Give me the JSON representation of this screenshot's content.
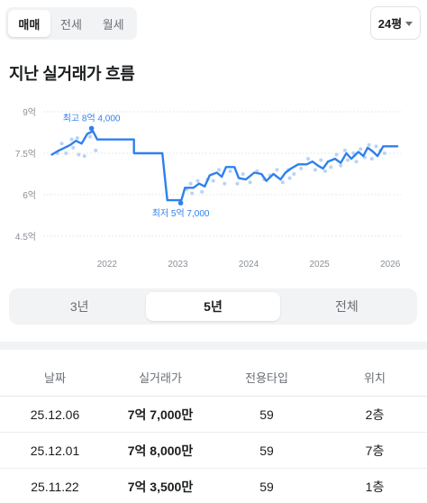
{
  "deal_tabs": [
    {
      "label": "매매",
      "active": true
    },
    {
      "label": "전세",
      "active": false
    },
    {
      "label": "월세",
      "active": false
    }
  ],
  "size_select": {
    "label": "24평"
  },
  "section_title": "지난 실거래가 흐름",
  "chart_data": {
    "type": "line",
    "title": "",
    "y_unit": "억",
    "y_ticks": [
      "9억",
      "7.5억",
      "6억",
      "4.5억"
    ],
    "y_tick_values": [
      9,
      7.5,
      6,
      4.5
    ],
    "ylim": [
      4.5,
      9
    ],
    "x_ticks": [
      "2022",
      "2023",
      "2024",
      "2025",
      "2026"
    ],
    "x_tick_values": [
      2022,
      2023,
      2024,
      2025,
      2026
    ],
    "xlim": [
      2021.2,
      2026.15
    ],
    "grid": true,
    "annotations": {
      "max": {
        "label": "최고 8억 4,000",
        "x": 2021.78,
        "y": 8.4
      },
      "min": {
        "label": "최저 5억 7,000",
        "x": 2023.04,
        "y": 5.7
      }
    },
    "series": [
      {
        "values": [
          {
            "x": 2021.22,
            "y": 7.45
          },
          {
            "x": 2021.32,
            "y": 7.6
          },
          {
            "x": 2021.4,
            "y": 7.7
          },
          {
            "x": 2021.48,
            "y": 7.8
          },
          {
            "x": 2021.56,
            "y": 7.95
          },
          {
            "x": 2021.64,
            "y": 7.85
          },
          {
            "x": 2021.72,
            "y": 8.2
          },
          {
            "x": 2021.8,
            "y": 8.3
          },
          {
            "x": 2021.86,
            "y": 8.0
          },
          {
            "x": 2022.2,
            "y": 8.0
          },
          {
            "x": 2022.38,
            "y": 8.0
          },
          {
            "x": 2022.38,
            "y": 7.5
          },
          {
            "x": 2022.78,
            "y": 7.5
          },
          {
            "x": 2022.85,
            "y": 5.8
          },
          {
            "x": 2023.05,
            "y": 5.8
          },
          {
            "x": 2023.1,
            "y": 6.25
          },
          {
            "x": 2023.22,
            "y": 6.25
          },
          {
            "x": 2023.3,
            "y": 6.4
          },
          {
            "x": 2023.38,
            "y": 6.3
          },
          {
            "x": 2023.45,
            "y": 6.7
          },
          {
            "x": 2023.55,
            "y": 6.8
          },
          {
            "x": 2023.62,
            "y": 6.65
          },
          {
            "x": 2023.68,
            "y": 7.0
          },
          {
            "x": 2023.8,
            "y": 7.0
          },
          {
            "x": 2023.86,
            "y": 6.6
          },
          {
            "x": 2023.96,
            "y": 6.55
          },
          {
            "x": 2024.08,
            "y": 6.8
          },
          {
            "x": 2024.18,
            "y": 6.75
          },
          {
            "x": 2024.25,
            "y": 6.5
          },
          {
            "x": 2024.35,
            "y": 6.75
          },
          {
            "x": 2024.45,
            "y": 6.55
          },
          {
            "x": 2024.52,
            "y": 6.8
          },
          {
            "x": 2024.6,
            "y": 6.95
          },
          {
            "x": 2024.7,
            "y": 7.1
          },
          {
            "x": 2024.82,
            "y": 7.1
          },
          {
            "x": 2024.9,
            "y": 7.2
          },
          {
            "x": 2024.98,
            "y": 7.05
          },
          {
            "x": 2025.05,
            "y": 6.95
          },
          {
            "x": 2025.12,
            "y": 7.2
          },
          {
            "x": 2025.22,
            "y": 7.3
          },
          {
            "x": 2025.3,
            "y": 7.15
          },
          {
            "x": 2025.38,
            "y": 7.5
          },
          {
            "x": 2025.45,
            "y": 7.3
          },
          {
            "x": 2025.55,
            "y": 7.55
          },
          {
            "x": 2025.62,
            "y": 7.4
          },
          {
            "x": 2025.68,
            "y": 7.7
          },
          {
            "x": 2025.76,
            "y": 7.55
          },
          {
            "x": 2025.82,
            "y": 7.4
          },
          {
            "x": 2025.9,
            "y": 7.75
          },
          {
            "x": 2026.0,
            "y": 7.75
          },
          {
            "x": 2026.1,
            "y": 7.75
          }
        ]
      }
    ],
    "scatter": [
      {
        "x": 2021.3,
        "y": 7.5
      },
      {
        "x": 2021.36,
        "y": 7.85
      },
      {
        "x": 2021.42,
        "y": 7.5
      },
      {
        "x": 2021.5,
        "y": 8.0
      },
      {
        "x": 2021.52,
        "y": 7.7
      },
      {
        "x": 2021.58,
        "y": 8.05
      },
      {
        "x": 2021.6,
        "y": 7.45
      },
      {
        "x": 2021.68,
        "y": 7.4
      },
      {
        "x": 2021.76,
        "y": 8.1
      },
      {
        "x": 2021.84,
        "y": 7.6
      },
      {
        "x": 2023.12,
        "y": 6.2
      },
      {
        "x": 2023.18,
        "y": 6.4
      },
      {
        "x": 2023.2,
        "y": 6.05
      },
      {
        "x": 2023.28,
        "y": 6.5
      },
      {
        "x": 2023.34,
        "y": 6.1
      },
      {
        "x": 2023.42,
        "y": 6.55
      },
      {
        "x": 2023.5,
        "y": 6.5
      },
      {
        "x": 2023.58,
        "y": 6.9
      },
      {
        "x": 2023.66,
        "y": 6.4
      },
      {
        "x": 2023.74,
        "y": 6.85
      },
      {
        "x": 2023.84,
        "y": 6.4
      },
      {
        "x": 2023.92,
        "y": 6.75
      },
      {
        "x": 2024.02,
        "y": 6.45
      },
      {
        "x": 2024.12,
        "y": 6.85
      },
      {
        "x": 2024.22,
        "y": 6.55
      },
      {
        "x": 2024.3,
        "y": 6.7
      },
      {
        "x": 2024.4,
        "y": 6.9
      },
      {
        "x": 2024.48,
        "y": 6.45
      },
      {
        "x": 2024.56,
        "y": 6.9
      },
      {
        "x": 2024.58,
        "y": 6.6
      },
      {
        "x": 2024.64,
        "y": 6.75
      },
      {
        "x": 2024.74,
        "y": 6.95
      },
      {
        "x": 2024.84,
        "y": 7.3
      },
      {
        "x": 2024.94,
        "y": 6.9
      },
      {
        "x": 2025.02,
        "y": 7.25
      },
      {
        "x": 2025.08,
        "y": 6.85
      },
      {
        "x": 2025.16,
        "y": 7.0
      },
      {
        "x": 2025.24,
        "y": 7.45
      },
      {
        "x": 2025.3,
        "y": 7.05
      },
      {
        "x": 2025.36,
        "y": 7.6
      },
      {
        "x": 2025.4,
        "y": 7.25
      },
      {
        "x": 2025.48,
        "y": 7.5
      },
      {
        "x": 2025.52,
        "y": 7.2
      },
      {
        "x": 2025.58,
        "y": 7.65
      },
      {
        "x": 2025.64,
        "y": 7.35
      },
      {
        "x": 2025.7,
        "y": 7.8
      },
      {
        "x": 2025.74,
        "y": 7.3
      },
      {
        "x": 2025.8,
        "y": 7.75
      },
      {
        "x": 2025.86,
        "y": 7.6
      },
      {
        "x": 2025.92,
        "y": 7.5
      }
    ]
  },
  "period_tabs": [
    {
      "label": "3년",
      "active": false
    },
    {
      "label": "5년",
      "active": true
    },
    {
      "label": "전체",
      "active": false
    }
  ],
  "table": {
    "headers": [
      "날짜",
      "실거래가",
      "전용타입",
      "위치"
    ],
    "rows": [
      {
        "date": "25.12.06",
        "price": "7억 7,000만",
        "type": "59",
        "floor": "2층"
      },
      {
        "date": "25.12.01",
        "price": "7억 8,000만",
        "type": "59",
        "floor": "7층"
      },
      {
        "date": "25.11.22",
        "price": "7억 3,500만",
        "type": "59",
        "floor": "1층"
      }
    ]
  },
  "colors": {
    "accent": "#2f80ed",
    "scatter": "#b8d3f5",
    "grid": "#e6e8ea",
    "tab_bg": "#f2f3f5"
  }
}
